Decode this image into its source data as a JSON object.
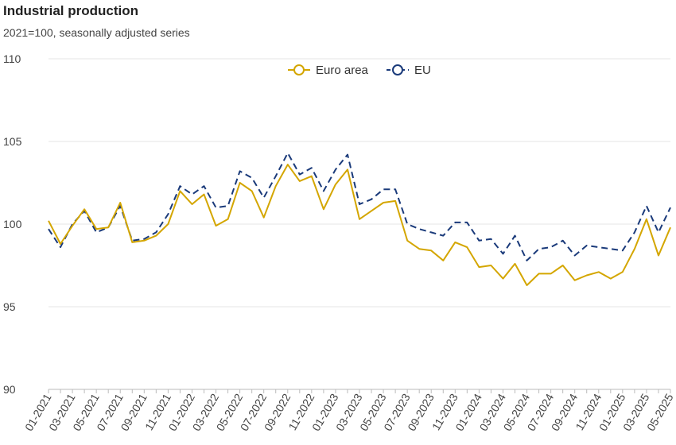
{
  "chart_data": {
    "type": "line",
    "title": "Industrial production",
    "subtitle": "2021=100, seasonally adjusted series",
    "xlabel": "",
    "ylabel": "",
    "ylim": [
      90,
      110
    ],
    "yticks": [
      90,
      95,
      100,
      105,
      110
    ],
    "x": [
      "01-2021",
      "02-2021",
      "03-2021",
      "04-2021",
      "05-2021",
      "06-2021",
      "07-2021",
      "08-2021",
      "09-2021",
      "10-2021",
      "11-2021",
      "12-2021",
      "01-2022",
      "02-2022",
      "03-2022",
      "04-2022",
      "05-2022",
      "06-2022",
      "07-2022",
      "08-2022",
      "09-2022",
      "10-2022",
      "11-2022",
      "12-2022",
      "01-2023",
      "02-2023",
      "03-2023",
      "04-2023",
      "05-2023",
      "06-2023",
      "07-2023",
      "08-2023",
      "09-2023",
      "10-2023",
      "11-2023",
      "12-2023",
      "01-2024",
      "02-2024",
      "03-2024",
      "04-2024",
      "05-2024",
      "06-2024",
      "07-2024",
      "08-2024",
      "09-2024",
      "10-2024",
      "11-2024",
      "12-2024",
      "01-2025",
      "02-2025",
      "03-2025",
      "04-2025",
      "05-2025"
    ],
    "xtick_labels": [
      "01-2021",
      "03-2021",
      "05-2021",
      "07-2021",
      "09-2021",
      "11-2021",
      "01-2022",
      "03-2022",
      "05-2022",
      "07-2022",
      "09-2022",
      "11-2022",
      "01-2023",
      "03-2023",
      "05-2023",
      "07-2023",
      "09-2023",
      "11-2023",
      "01-2024",
      "03-2024",
      "05-2024",
      "07-2024",
      "09-2024",
      "11-2024",
      "01-2025",
      "03-2025",
      "05-2025"
    ],
    "legend_position": "top-center",
    "grid": true,
    "series": [
      {
        "name": "Euro area",
        "color": "#d4a600",
        "style": "solid",
        "values": [
          100.2,
          98.8,
          99.9,
          100.9,
          99.7,
          99.8,
          101.3,
          98.9,
          99.0,
          99.3,
          100.0,
          102.0,
          101.2,
          101.8,
          99.9,
          100.3,
          102.5,
          102.0,
          100.4,
          102.3,
          103.6,
          102.6,
          102.9,
          100.9,
          102.4,
          103.3,
          100.3,
          100.8,
          101.3,
          101.4,
          99.0,
          98.5,
          98.4,
          97.8,
          98.9,
          98.6,
          97.4,
          97.5,
          96.7,
          97.6,
          96.3,
          97.0,
          97.0,
          97.5,
          96.6,
          96.9,
          97.1,
          96.7,
          97.1,
          98.5,
          100.3,
          98.1,
          99.8
        ]
      },
      {
        "name": "EU",
        "color": "#1a3a7a",
        "style": "dashed",
        "values": [
          99.7,
          98.6,
          100.0,
          100.8,
          99.5,
          99.8,
          101.1,
          99.0,
          99.1,
          99.5,
          100.6,
          102.3,
          101.8,
          102.3,
          101.0,
          101.1,
          103.2,
          102.8,
          101.6,
          102.9,
          104.3,
          103.0,
          103.4,
          102.0,
          103.3,
          104.2,
          101.2,
          101.5,
          102.1,
          102.1,
          100.0,
          99.7,
          99.5,
          99.3,
          100.1,
          100.1,
          99.0,
          99.1,
          98.2,
          99.3,
          97.8,
          98.5,
          98.6,
          99.0,
          98.1,
          98.7,
          98.6,
          98.5,
          98.4,
          99.5,
          101.1,
          99.5,
          101.0
        ]
      }
    ]
  }
}
